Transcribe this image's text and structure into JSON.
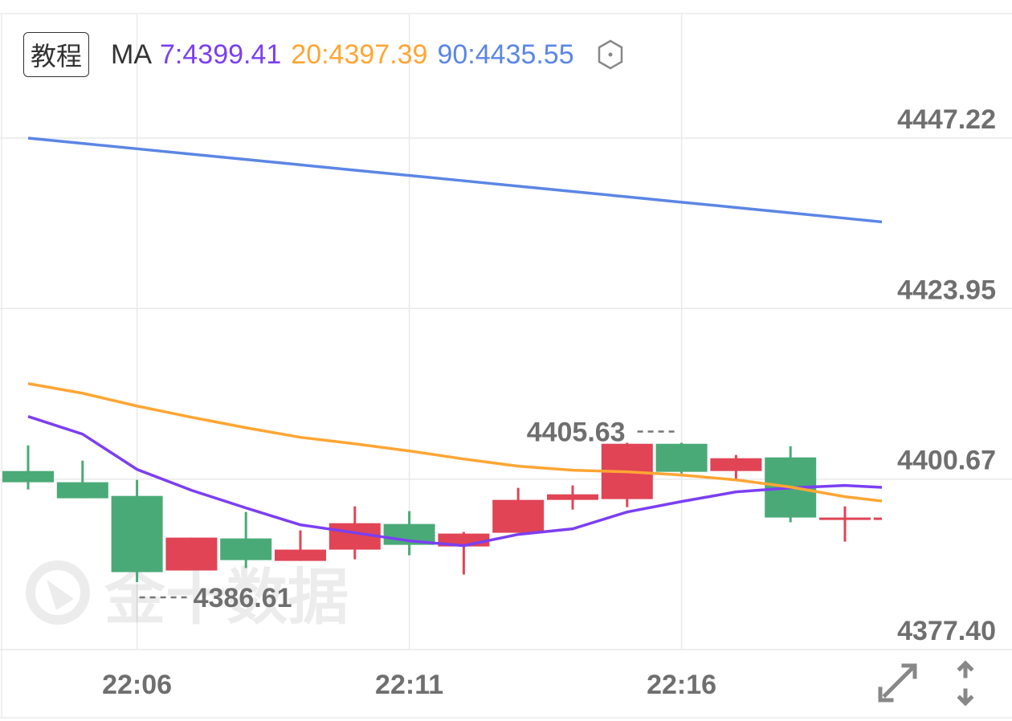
{
  "toolbar": {
    "tutorial_label": "教程",
    "ma_label": "MA",
    "ma_values": [
      {
        "text": "7:4399.41",
        "color": "#7b3ff2"
      },
      {
        "text": "20:4397.39",
        "color": "#ffa533"
      },
      {
        "text": "90:4435.55",
        "color": "#5b86e5"
      }
    ],
    "settings_icon": "hexagon-settings-icon"
  },
  "watermark": "金十数据",
  "controls": {
    "expand_icon": "diagonal-expand-icon",
    "scale_icon": "up-down-arrows-icon"
  },
  "chart_data": {
    "type": "candlestick",
    "colors": {
      "up": "#e04455",
      "down": "#4aaa77"
    },
    "ylim": [
      4377.4,
      4447.22
    ],
    "y_ticks": [
      "4447.22",
      "4423.95",
      "4400.67",
      "4377.40"
    ],
    "x_ticks": [
      "22:06",
      "22:11",
      "22:16"
    ],
    "grid": true,
    "x": [
      "22:04",
      "22:05",
      "22:06",
      "22:07",
      "22:08",
      "22:09",
      "22:10",
      "22:11",
      "22:12",
      "22:13",
      "22:14",
      "22:15",
      "22:16",
      "22:17",
      "22:18",
      "22:19",
      "22:20"
    ],
    "ohlc": [
      [
        4401.77,
        4405.27,
        4399.25,
        4400.24
      ],
      [
        4400.24,
        4403.19,
        4398.05,
        4398.05
      ],
      [
        4398.37,
        4400.56,
        4386.61,
        4387.97
      ],
      [
        4388.19,
        4392.68,
        4388.19,
        4392.68
      ],
      [
        4392.57,
        4396.18,
        4388.52,
        4389.61
      ],
      [
        4389.5,
        4393.67,
        4389.5,
        4391.04
      ],
      [
        4391.04,
        4396.95,
        4389.72,
        4394.65
      ],
      [
        4394.54,
        4396.29,
        4390.27,
        4391.69
      ],
      [
        4391.47,
        4393.45,
        4387.64,
        4393.23
      ],
      [
        4393.34,
        4399.47,
        4393.34,
        4397.83
      ],
      [
        4397.83,
        4399.8,
        4396.51,
        4398.59
      ],
      [
        4397.94,
        4405.63,
        4396.84,
        4405.49
      ],
      [
        4405.49,
        4405.63,
        4401.44,
        4401.66
      ],
      [
        4401.77,
        4403.96,
        4400.67,
        4403.52
      ],
      [
        4403.63,
        4405.16,
        4394.77,
        4395.42
      ],
      [
        4395.31,
        4396.95,
        4392.13,
        4395.42
      ],
      [
        4395.42,
        4395.42,
        4395.42,
        4395.42
      ]
    ],
    "series": [
      {
        "name": "MA7",
        "color": "#7b3ff2",
        "values": [
          4409.22,
          4406.81,
          4401.99,
          4399.14,
          4396.73,
          4394.43,
          4393.34,
          4392.24,
          4391.58,
          4393.12,
          4393.88,
          4396.18,
          4397.61,
          4398.92,
          4399.47,
          4399.8,
          4399.41
        ]
      },
      {
        "name": "MA20",
        "color": "#ffa533",
        "values": [
          4413.71,
          4412.39,
          4410.64,
          4409.11,
          4407.68,
          4406.37,
          4405.49,
          4404.51,
          4403.41,
          4402.43,
          4401.88,
          4401.66,
          4401.22,
          4400.56,
          4399.58,
          4398.27,
          4397.39
        ]
      },
      {
        "name": "MA90",
        "color": "#5b86e5",
        "values": [
          4447.22,
          4446.49,
          4445.76,
          4445.03,
          4444.3,
          4443.57,
          4442.84,
          4442.12,
          4441.39,
          4440.66,
          4439.93,
          4439.2,
          4438.47,
          4437.74,
          4437.01,
          4436.28,
          4435.55
        ]
      }
    ],
    "annotations": [
      {
        "label": "4405.63",
        "x": "22:16",
        "value": 4405.63,
        "side": "left"
      },
      {
        "label": "4386.61",
        "x": "22:06",
        "value": 4386.61,
        "side": "right"
      }
    ]
  }
}
